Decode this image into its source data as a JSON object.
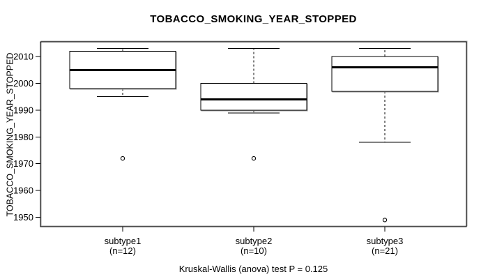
{
  "window": {
    "background": "#ffffff"
  },
  "chart_data": {
    "type": "boxplot",
    "title": "TOBACCO_SMOKING_YEAR_STOPPED",
    "ylabel": "TOBACCO_SMOKING_YEAR_STOPPED",
    "xlabel": "",
    "caption": "Kruskal-Wallis (anova) test P = 0.125",
    "p_value": 0.125,
    "grid": false,
    "legend_position": "none",
    "ylim": [
      1946.5,
      2015.5
    ],
    "y_ticks": [
      1950,
      1960,
      1970,
      1980,
      1990,
      2000,
      2010
    ],
    "categories": [
      "subtype1",
      "subtype2",
      "subtype3"
    ],
    "series": [
      {
        "name": "subtype1",
        "sublabel": "(n=12)",
        "n": 12,
        "lower_whisker": 1995,
        "q1": 1998,
        "median": 2005,
        "q3": 2012,
        "upper_whisker": 2013,
        "outliers": [
          1972
        ]
      },
      {
        "name": "subtype2",
        "sublabel": "(n=10)",
        "n": 10,
        "lower_whisker": 1989,
        "q1": 1990,
        "median": 1994,
        "q3": 2000,
        "upper_whisker": 2013,
        "outliers": [
          1972
        ]
      },
      {
        "name": "subtype3",
        "sublabel": "(n=21)",
        "n": 21,
        "lower_whisker": 1978,
        "q1": 1997,
        "median": 2006,
        "q3": 2010,
        "upper_whisker": 2013,
        "outliers": [
          1949
        ]
      }
    ],
    "colors": {
      "line": "#000000",
      "halo": "#9c9c9c",
      "box_fill": "#ffffff",
      "background": "#ffffff"
    }
  }
}
